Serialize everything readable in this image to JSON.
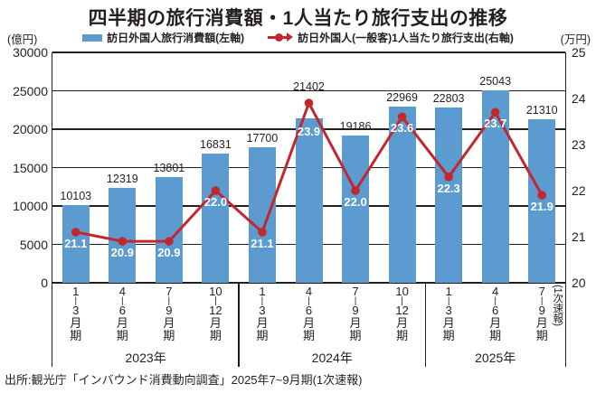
{
  "title": "四半期の旅行消費額・1人当たり旅行支出の推移",
  "axis_units": {
    "left": "(億円)",
    "right": "(万円)"
  },
  "legend": {
    "bar_label": "訪日外国人旅行消費額(左軸)",
    "line_label": "訪日外国人(一般客)1人当たり旅行支出(右軸)"
  },
  "source": "出所:観光庁「インバウンド消費動向調査」2025年7~9月期(1次速報)",
  "colors": {
    "bar": "#5B9BD0",
    "line": "#C2272D",
    "axis": "#231F20",
    "label_on_bar": "#FFFFFF"
  },
  "chart_data": {
    "type": "bar",
    "subtype": "bar+line dual-axis combo",
    "categories": [
      "2023年1-3月期",
      "2023年4-6月期",
      "2023年7-9月期",
      "2023年10-12月期",
      "2024年1-3月期",
      "2024年4-6月期",
      "2024年7-9月期",
      "2024年10-12月期",
      "2025年1-3月期",
      "2025年4-6月期",
      "2025年7-9月期(1次速報)"
    ],
    "x_ticks": [
      {
        "from": "1",
        "to": "3"
      },
      {
        "from": "4",
        "to": "6"
      },
      {
        "from": "7",
        "to": "9"
      },
      {
        "from": "10",
        "to": "12"
      },
      {
        "from": "1",
        "to": "3"
      },
      {
        "from": "4",
        "to": "6"
      },
      {
        "from": "7",
        "to": "9"
      },
      {
        "from": "10",
        "to": "12"
      },
      {
        "from": "1",
        "to": "3"
      },
      {
        "from": "4",
        "to": "6"
      },
      {
        "from": "7",
        "to": "9"
      }
    ],
    "x_suffix": [
      "月",
      "期"
    ],
    "last_tick_note": "(1次速報)",
    "year_groups": [
      {
        "label": "2023年",
        "count": 4
      },
      {
        "label": "2024年",
        "count": 4
      },
      {
        "label": "2025年",
        "count": 3
      }
    ],
    "series": [
      {
        "name": "訪日外国人旅行消費額(左軸)",
        "type": "bar",
        "axis": "left",
        "values": [
          10103,
          12319,
          13801,
          16831,
          17700,
          21402,
          19186,
          22969,
          22803,
          25043,
          21310
        ]
      },
      {
        "name": "訪日外国人(一般客)1人当たり旅行支出(右軸)",
        "type": "line",
        "axis": "right",
        "values": [
          21.1,
          20.9,
          20.9,
          22.0,
          21.1,
          23.9,
          22.0,
          23.6,
          22.3,
          23.7,
          21.9
        ]
      }
    ],
    "left_axis": {
      "unit": "(億円)",
      "min": 0,
      "max": 30000,
      "step": 5000,
      "tick_labels": [
        "30000",
        "25000",
        "20000",
        "15000",
        "10000",
        "5000",
        "0"
      ]
    },
    "right_axis": {
      "unit": "(万円)",
      "min": 20,
      "max": 25,
      "step": 1,
      "tick_labels": [
        "25",
        "24",
        "23",
        "22",
        "21",
        "20"
      ]
    },
    "grid": "horizontal lines at left-axis steps, bars drawn over grid",
    "legend_position": "top center"
  }
}
